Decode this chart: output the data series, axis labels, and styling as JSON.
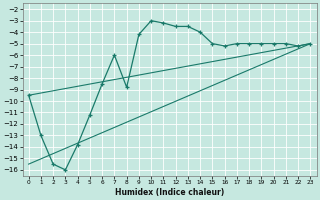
{
  "xlabel": "Humidex (Indice chaleur)",
  "bg_color": "#c6e8e0",
  "grid_color": "#ffffff",
  "line_color": "#1a7a6a",
  "xlim": [
    -0.5,
    23.5
  ],
  "ylim": [
    -16.5,
    -1.5
  ],
  "xticks": [
    0,
    1,
    2,
    3,
    4,
    5,
    6,
    7,
    8,
    9,
    10,
    11,
    12,
    13,
    14,
    15,
    16,
    17,
    18,
    19,
    20,
    21,
    22,
    23
  ],
  "yticks": [
    -2,
    -3,
    -4,
    -5,
    -6,
    -7,
    -8,
    -9,
    -10,
    -11,
    -12,
    -13,
    -14,
    -15,
    -16
  ],
  "main_x": [
    0,
    1,
    2,
    3,
    4,
    5,
    6,
    7,
    8,
    9,
    10,
    11,
    12,
    13,
    14,
    15,
    16,
    17,
    18,
    19,
    20,
    21,
    22,
    23
  ],
  "main_y": [
    -9.5,
    -13.0,
    -15.5,
    -16.0,
    -13.8,
    -11.2,
    -8.5,
    -6.0,
    -8.8,
    -4.2,
    -3.0,
    -3.2,
    -3.5,
    -3.5,
    -4.0,
    -5.0,
    -5.2,
    -5.0,
    -5.0,
    -5.0,
    -5.0,
    -5.0,
    -5.2,
    -5.0
  ],
  "line1_x": [
    0,
    23
  ],
  "line1_y": [
    -9.5,
    -5.0
  ],
  "line2_x": [
    0,
    23
  ],
  "line2_y": [
    -15.5,
    -5.0
  ]
}
